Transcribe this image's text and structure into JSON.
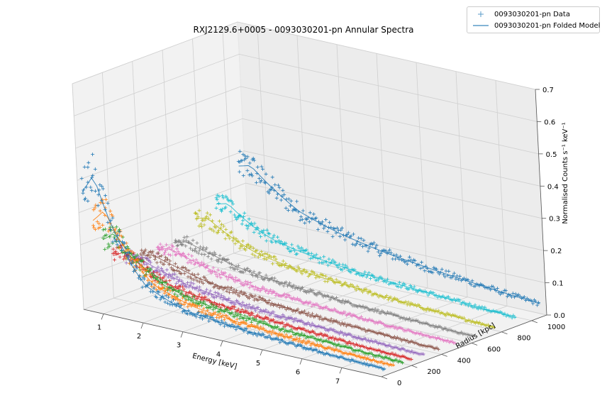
{
  "chart_data": {
    "type": "scatter",
    "projection": "3d",
    "title": "RXJ2129.6+0005 - 0093030201-pn Annular Spectra",
    "xlabel": "Energy [keV]",
    "ylabel": "Radius [kpc]",
    "zlabel": "Normalised Counts s⁻¹ keV⁻¹",
    "xlim": [
      0.5,
      8.0
    ],
    "ylim": [
      0,
      1100
    ],
    "zlim": [
      0.0,
      0.7
    ],
    "xticks": [
      "1",
      "2",
      "3",
      "4",
      "5",
      "6",
      "7"
    ],
    "yticks": [
      "0",
      "200",
      "400",
      "600",
      "800",
      "1000"
    ],
    "zticks": [
      "0.0",
      "0.1",
      "0.2",
      "0.3",
      "0.4",
      "0.5",
      "0.6",
      "0.7"
    ],
    "grid": true,
    "legend": {
      "placement": "top-right",
      "entries": [
        {
          "label": "0093030201-pn Data",
          "marker": "+",
          "color": "#5a9bc9"
        },
        {
          "label": "0093030201-pn Folded Model",
          "marker": "line",
          "color": "#5a9bc9"
        }
      ]
    },
    "series": [
      {
        "radius": 30,
        "color": "#1f77b4",
        "energy": [
          0.5,
          0.8,
          1.5,
          2.0,
          3.0,
          4.0,
          5.0,
          6.0,
          7.0,
          8.0
        ],
        "counts": [
          0.36,
          0.42,
          0.2,
          0.11,
          0.06,
          0.045,
          0.035,
          0.028,
          0.022,
          0.018
        ]
      },
      {
        "radius": 90,
        "color": "#ff7f0e",
        "energy": [
          0.5,
          0.8,
          1.5,
          2.0,
          3.0,
          4.0,
          5.0,
          6.0,
          7.0,
          8.0
        ],
        "counts": [
          0.26,
          0.3,
          0.16,
          0.1,
          0.06,
          0.045,
          0.035,
          0.028,
          0.022,
          0.018
        ]
      },
      {
        "radius": 150,
        "color": "#2ca02c",
        "energy": [
          0.5,
          0.8,
          1.5,
          2.0,
          3.0,
          4.0,
          5.0,
          6.0,
          7.0,
          8.0
        ],
        "counts": [
          0.19,
          0.22,
          0.13,
          0.09,
          0.06,
          0.045,
          0.036,
          0.028,
          0.022,
          0.018
        ]
      },
      {
        "radius": 210,
        "color": "#d62728",
        "energy": [
          0.5,
          0.8,
          1.5,
          2.0,
          3.0,
          4.0,
          5.0,
          6.0,
          7.0,
          8.0
        ],
        "counts": [
          0.13,
          0.15,
          0.1,
          0.075,
          0.055,
          0.042,
          0.034,
          0.027,
          0.021,
          0.017
        ]
      },
      {
        "radius": 290,
        "color": "#9467bd",
        "energy": [
          0.5,
          0.8,
          1.5,
          2.0,
          3.0,
          4.0,
          5.0,
          6.0,
          7.0,
          8.0
        ],
        "counts": [
          0.11,
          0.12,
          0.09,
          0.07,
          0.052,
          0.04,
          0.032,
          0.026,
          0.021,
          0.017
        ]
      },
      {
        "radius": 390,
        "color": "#8c564b",
        "energy": [
          0.5,
          0.8,
          1.5,
          2.0,
          3.0,
          4.0,
          5.0,
          6.0,
          7.0,
          8.0
        ],
        "counts": [
          0.1,
          0.11,
          0.085,
          0.068,
          0.05,
          0.04,
          0.032,
          0.026,
          0.021,
          0.017
        ]
      },
      {
        "radius": 500,
        "color": "#e377c2",
        "energy": [
          0.5,
          0.8,
          1.5,
          2.0,
          3.0,
          4.0,
          5.0,
          6.0,
          7.0,
          8.0
        ],
        "counts": [
          0.1,
          0.11,
          0.085,
          0.068,
          0.05,
          0.04,
          0.032,
          0.026,
          0.021,
          0.017
        ]
      },
      {
        "radius": 620,
        "color": "#7f7f7f",
        "energy": [
          0.5,
          0.8,
          1.5,
          2.0,
          3.0,
          4.0,
          5.0,
          6.0,
          7.0,
          8.0
        ],
        "counts": [
          0.1,
          0.11,
          0.085,
          0.068,
          0.05,
          0.04,
          0.032,
          0.026,
          0.021,
          0.017
        ]
      },
      {
        "radius": 760,
        "color": "#bcbd22",
        "energy": [
          0.5,
          0.8,
          1.5,
          2.0,
          3.0,
          4.0,
          5.0,
          6.0,
          7.0,
          8.0
        ],
        "counts": [
          0.15,
          0.16,
          0.11,
          0.085,
          0.062,
          0.05,
          0.04,
          0.032,
          0.026,
          0.021
        ]
      },
      {
        "radius": 900,
        "color": "#17becf",
        "energy": [
          0.5,
          0.8,
          1.5,
          2.0,
          3.0,
          4.0,
          5.0,
          6.0,
          7.0,
          8.0
        ],
        "counts": [
          0.17,
          0.18,
          0.12,
          0.095,
          0.072,
          0.058,
          0.048,
          0.04,
          0.033,
          0.027
        ]
      },
      {
        "radius": 1060,
        "color": "#1f77b4",
        "energy": [
          0.5,
          0.8,
          1.5,
          2.0,
          3.0,
          4.0,
          5.0,
          6.0,
          7.0,
          8.0
        ],
        "counts": [
          0.26,
          0.27,
          0.2,
          0.16,
          0.12,
          0.095,
          0.078,
          0.064,
          0.052,
          0.042
        ]
      }
    ]
  }
}
